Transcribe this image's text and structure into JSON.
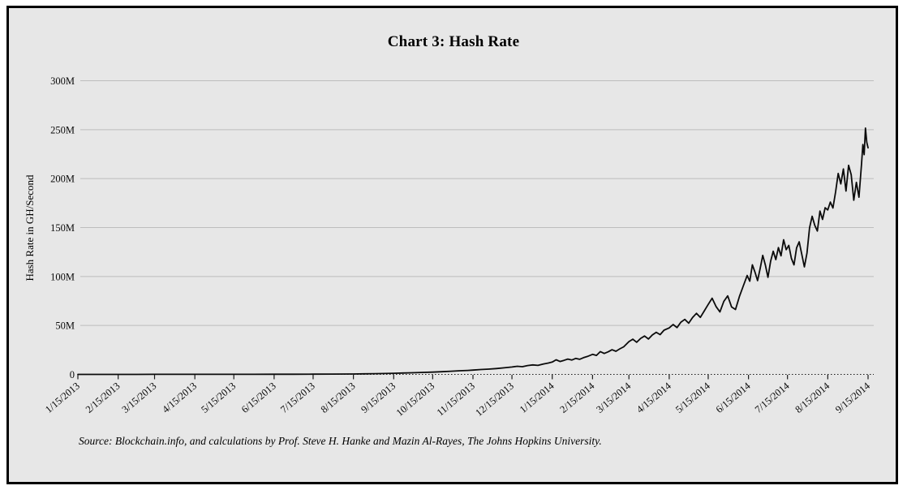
{
  "chart": {
    "title": "Chart 3: Hash Rate",
    "y_axis_title": "Hash Rate in GH/Second",
    "source": "Source: Blockchain.info, and calculations by Prof. Steve H. Hanke and Mazin Al-Rayes, The Johns Hopkins University."
  },
  "chart_data": {
    "type": "line",
    "title": "Chart 3: Hash Rate",
    "xlabel": "",
    "ylabel": "Hash Rate in GH/Second",
    "legend": null,
    "grid": "horizontal",
    "ylim_gh_per_second": [
      0,
      300000000
    ],
    "y_tick_labels": [
      "0",
      "50M",
      "100M",
      "150M",
      "200M",
      "250M",
      "300M"
    ],
    "y_tick_values_M": [
      0,
      50,
      100,
      150,
      200,
      250,
      300
    ],
    "x_tick_labels": [
      "1/15/2013",
      "2/15/2013",
      "3/15/2013",
      "4/15/2013",
      "5/15/2013",
      "6/15/2013",
      "7/15/2013",
      "8/15/2013",
      "9/15/2013",
      "10/15/2013",
      "11/15/2013",
      "12/15/2013",
      "1/15/2014",
      "2/15/2014",
      "3/15/2014",
      "4/15/2014",
      "5/15/2014",
      "6/15/2014",
      "7/15/2014",
      "8/15/2014",
      "9/15/2014"
    ],
    "x_tick_day_offsets": [
      0,
      31,
      59,
      90,
      120,
      151,
      181,
      212,
      243,
      273,
      304,
      334,
      365,
      396,
      424,
      455,
      485,
      516,
      546,
      577,
      608
    ],
    "colors": {
      "panel_background": "#e7e7e7",
      "gridline": "#bdbdbd",
      "series_line": "#0b0b0b",
      "axis": "#1a1a1a"
    },
    "series": [
      {
        "name": "Hash Rate (M GH/Second)",
        "x_days_from_2013_01_15": [
          0,
          15,
          31,
          45,
          59,
          75,
          90,
          105,
          120,
          135,
          151,
          166,
          181,
          196,
          212,
          220,
          228,
          236,
          243,
          250,
          257,
          264,
          273,
          280,
          287,
          294,
          300,
          304,
          310,
          316,
          322,
          328,
          334,
          338,
          342,
          346,
          350,
          354,
          358,
          362,
          365,
          368,
          371,
          374,
          377,
          380,
          383,
          386,
          389,
          392,
          396,
          399,
          402,
          405,
          408,
          411,
          414,
          417,
          420,
          424,
          427,
          430,
          433,
          436,
          439,
          442,
          445,
          448,
          451,
          455,
          458,
          461,
          464,
          467,
          470,
          473,
          476,
          479,
          482,
          485,
          488,
          491,
          494,
          497,
          500,
          503,
          506,
          509,
          512,
          515,
          517,
          519,
          521,
          523,
          525,
          527,
          529,
          531,
          533,
          535,
          537,
          539,
          541,
          543,
          545,
          547,
          549,
          551,
          553,
          555,
          557,
          559,
          561,
          563,
          565,
          567,
          569,
          571,
          573,
          575,
          577,
          579,
          581,
          583,
          585,
          587,
          589,
          591,
          593,
          595,
          597,
          599,
          601,
          603,
          604,
          605,
          606,
          607,
          608
        ],
        "values_M": [
          0.02,
          0.03,
          0.03,
          0.04,
          0.05,
          0.06,
          0.07,
          0.08,
          0.09,
          0.11,
          0.14,
          0.18,
          0.24,
          0.3,
          0.4,
          0.55,
          0.72,
          0.95,
          1.15,
          1.4,
          1.65,
          1.95,
          2.35,
          2.75,
          3.2,
          3.7,
          4.1,
          4.4,
          5.0,
          5.4,
          6.0,
          6.7,
          7.5,
          8.3,
          7.9,
          9.0,
          9.7,
          9.2,
          10.6,
          11.6,
          12.6,
          14.9,
          13.2,
          14.3,
          15.7,
          14.7,
          16.3,
          15.4,
          17.1,
          18.3,
          20.5,
          19.4,
          23.3,
          21.4,
          23.0,
          25.2,
          23.6,
          26.1,
          28.2,
          33.5,
          36.0,
          32.8,
          36.8,
          39.2,
          36.1,
          40.3,
          43.0,
          40.6,
          45.2,
          47.5,
          51.0,
          47.8,
          53.4,
          56.2,
          52.3,
          58.1,
          62.4,
          58.3,
          65.0,
          71.5,
          77.8,
          69.4,
          63.8,
          74.6,
          80.2,
          68.9,
          66.3,
          79.5,
          90.3,
          101.0,
          95.2,
          112.0,
          104.5,
          95.8,
          108.2,
          121.6,
          111.8,
          99.2,
          115.6,
          125.8,
          117.3,
          129.5,
          121.2,
          137.6,
          127.4,
          131.8,
          118.5,
          111.9,
          129.3,
          135.4,
          122.7,
          109.8,
          123.9,
          149.8,
          161.5,
          152.2,
          146.4,
          166.8,
          158.3,
          170.2,
          168.0,
          176.0,
          170.0,
          186.5,
          205.3,
          194.6,
          209.8,
          187.3,
          213.6,
          204.1,
          177.9,
          196.2,
          181.0,
          215.4,
          234.8,
          224.5,
          251.6,
          237.2,
          231.5
        ]
      }
    ]
  }
}
